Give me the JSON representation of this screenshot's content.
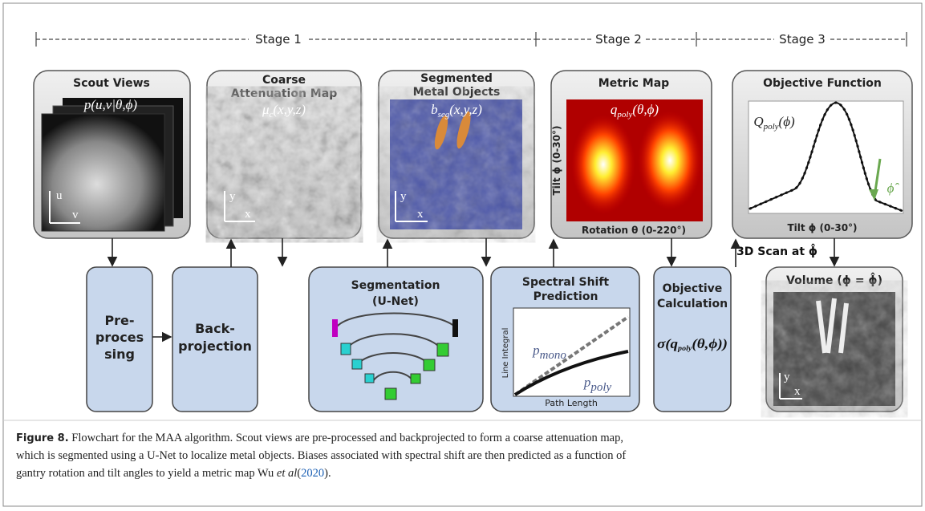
{
  "stages": [
    "Stage 1",
    "Stage 2",
    "Stage 3"
  ],
  "panels": [
    {
      "title": [
        "Scout Views"
      ],
      "formula": "p(u,v|θ,ϕ)",
      "axes": [
        "u",
        "v"
      ]
    },
    {
      "title": [
        "Coarse",
        "Attenuation Map"
      ],
      "formula": {
        "base": "μ",
        "sub": "c",
        "args": "(x,y,z)"
      },
      "axes": [
        "y",
        "x"
      ]
    },
    {
      "title": [
        "Segmented",
        "Metal Objects"
      ],
      "formula": {
        "base": "b",
        "sub": "seg",
        "args": "(x,y,z)"
      },
      "axes": [
        "y",
        "x"
      ]
    },
    {
      "title": [
        "Metric Map"
      ],
      "formula": {
        "base": "q",
        "sub": "poly",
        "args": "(θ,ϕ)"
      },
      "y_label": "Tilt ϕ (0-30°)",
      "x_label": "Rotation θ (0-220°)"
    },
    {
      "title": [
        "Objective Function"
      ],
      "formula": {
        "base": "Q",
        "sub": "poly",
        "args": "(ϕ)"
      },
      "x_label": "Tilt ϕ (0-30°)",
      "marker": "ϕ̂"
    }
  ],
  "steps": [
    {
      "title": [
        "Pre-",
        "proces",
        "sing"
      ]
    },
    {
      "title": [
        "Back-",
        "projection"
      ]
    },
    {
      "title": [
        "Segmentation"
      ],
      "subtitle": "(U-Net)"
    },
    {
      "title": [
        "Spectral Shift",
        "Prediction"
      ],
      "y_label": "Line Integral",
      "x_label": "Path Length",
      "curves": [
        {
          "base": "p",
          "sub": "mono"
        },
        {
          "base": "p",
          "sub": "poly"
        }
      ]
    },
    {
      "title": [
        "Objective",
        "Calculation"
      ],
      "formula": {
        "open": "σ(",
        "base": "q",
        "sub": "poly",
        "args": "(θ,ϕ))"
      }
    }
  ],
  "scan_label": "3D Scan at ϕ̂",
  "volume": {
    "title": "Volume (ϕ = ϕ̂)",
    "axes": [
      "y",
      "x"
    ]
  },
  "caption": {
    "label": "Figure 8.",
    "lines": [
      " Flowchart for the MAA algorithm. Scout views are pre-processed and backprojected to form a coarse attenuation map,",
      "which is segmented using a U-Net to localize metal objects. Biases associated with spectral shift are then predicted as a function of",
      "gantry rotation and tilt angles to yield a metric map Wu "
    ],
    "italic": "et al",
    "cite_open": "(",
    "year": "2020",
    "cite_close": ")."
  }
}
